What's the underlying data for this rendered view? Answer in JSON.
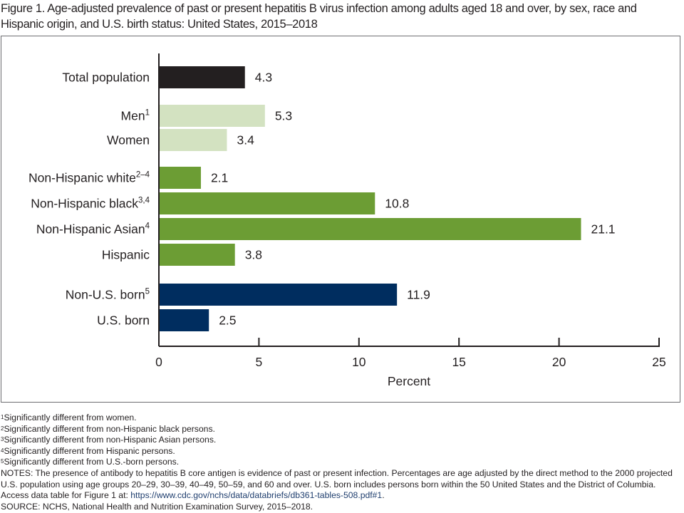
{
  "title": "Figure 1. Age-adjusted prevalence of past or present hepatitis B virus infection among adults aged 18 and over, by sex, race and Hispanic origin, and U.S. birth status: United States, 2015–2018",
  "chart_data": {
    "type": "bar",
    "orientation": "horizontal",
    "title": "Figure 1. Age-adjusted prevalence of past or present hepatitis B virus infection among adults aged 18 and over, by sex, race and Hispanic origin, and U.S. birth status: United States, 2015–2018",
    "xlabel": "Percent",
    "ylabel": "",
    "xlim": [
      0,
      25
    ],
    "xticks": [
      0,
      5,
      10,
      15,
      20,
      25
    ],
    "grid": false,
    "categories": [
      {
        "label": "Total population",
        "sup": "",
        "value": 4.3,
        "group": "total",
        "color": "#231f20"
      },
      {
        "label": "Men",
        "sup": "1",
        "value": 5.3,
        "group": "sex",
        "color": "#d3e2c1"
      },
      {
        "label": "Women",
        "sup": "",
        "value": 3.4,
        "group": "sex",
        "color": "#d3e2c1"
      },
      {
        "label": "Non-Hispanic white",
        "sup": "2–4",
        "value": 2.1,
        "group": "race",
        "color": "#6c9d34"
      },
      {
        "label": "Non-Hispanic black",
        "sup": "3,4",
        "value": 10.8,
        "group": "race",
        "color": "#6c9d34"
      },
      {
        "label": "Non-Hispanic Asian",
        "sup": "4",
        "value": 21.1,
        "group": "race",
        "color": "#6c9d34"
      },
      {
        "label": "Hispanic",
        "sup": "",
        "value": 3.8,
        "group": "race",
        "color": "#6c9d34"
      },
      {
        "label": "Non-U.S. born",
        "sup": "5",
        "value": 11.9,
        "group": "birth",
        "color": "#002d5f"
      },
      {
        "label": "U.S. born",
        "sup": "",
        "value": 2.5,
        "group": "birth",
        "color": "#002d5f"
      }
    ]
  },
  "footnotes": [
    {
      "sup": "1",
      "text": "Significantly different from women."
    },
    {
      "sup": "2",
      "text": "Significantly different from non-Hispanic black persons."
    },
    {
      "sup": "3",
      "text": "Significantly different from non-Hispanic Asian persons."
    },
    {
      "sup": "4",
      "text": "Significantly different from Hispanic persons."
    },
    {
      "sup": "5",
      "text": "Significantly different from U.S.-born persons."
    }
  ],
  "notes": {
    "text": "NOTES: The presence of antibody to hepatitis B core antigen is evidence of past or present infection. Percentages are age adjusted by the direct method to the 2000 projected U.S. population using age groups 20–29, 30–39, 40–49, 50–59, and 60 and over. U.S. born includes persons born within the 50 United States and the District of Columbia. Access data table for Figure 1 at: ",
    "link": "https://www.cdc.gov/nchs/data/databriefs/db361-tables-508.pdf#1",
    "end": "."
  },
  "source": "SOURCE: NCHS, National Health and Nutrition Examination Survey, 2015–2018."
}
